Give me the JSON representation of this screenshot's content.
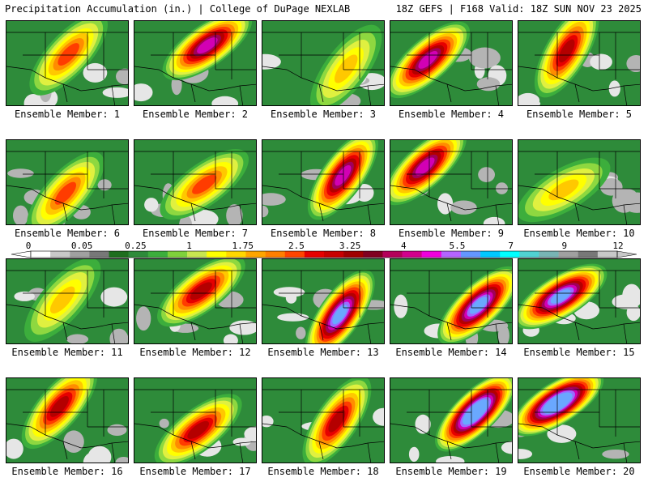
{
  "header": {
    "title": "Precipitation Accumulation (in.) | College of DuPage NEXLAB",
    "run_info": "18Z GEFS | F168 Valid: 18Z SUN NOV 23 2025"
  },
  "members": [
    {
      "label": "Ensemble Member: 1",
      "intensity": 2
    },
    {
      "label": "Ensemble Member: 2",
      "intensity": 4
    },
    {
      "label": "Ensemble Member: 3",
      "intensity": 1
    },
    {
      "label": "Ensemble Member: 4",
      "intensity": 4
    },
    {
      "label": "Ensemble Member: 5",
      "intensity": 3
    },
    {
      "label": "Ensemble Member: 6",
      "intensity": 2
    },
    {
      "label": "Ensemble Member: 7",
      "intensity": 2
    },
    {
      "label": "Ensemble Member: 8",
      "intensity": 4
    },
    {
      "label": "Ensemble Member: 9",
      "intensity": 4
    },
    {
      "label": "Ensemble Member: 10",
      "intensity": 1
    },
    {
      "label": "Ensemble Member: 11",
      "intensity": 1
    },
    {
      "label": "Ensemble Member: 12",
      "intensity": 3
    },
    {
      "label": "Ensemble Member: 13",
      "intensity": 5
    },
    {
      "label": "Ensemble Member: 14",
      "intensity": 5
    },
    {
      "label": "Ensemble Member: 15",
      "intensity": 5
    },
    {
      "label": "Ensemble Member: 16",
      "intensity": 3
    },
    {
      "label": "Ensemble Member: 17",
      "intensity": 3
    },
    {
      "label": "Ensemble Member: 18",
      "intensity": 3
    },
    {
      "label": "Ensemble Member: 19",
      "intensity": 6
    },
    {
      "label": "Ensemble Member: 20",
      "intensity": 6
    }
  ],
  "colorbar": {
    "tick_labels": [
      "0",
      "0.05",
      "0.25",
      "1",
      "1.75",
      "2.5",
      "3.25",
      "4",
      "5.5",
      "7",
      "9",
      "12"
    ],
    "colors": [
      "#ffffff",
      "#c8c8c8",
      "#a0a0a0",
      "#787878",
      "#1e6e1e",
      "#2e8b3a",
      "#3cae3c",
      "#7fd13b",
      "#c8e650",
      "#ffff00",
      "#ffd700",
      "#ffa500",
      "#ff7f00",
      "#ff4500",
      "#e60000",
      "#c80000",
      "#a00000",
      "#800020",
      "#b4005a",
      "#d2008c",
      "#f000dc",
      "#b464ff",
      "#6496ff",
      "#00c8ff",
      "#00ffff",
      "#50d2d2",
      "#78b4b4",
      "#a0a0a0",
      "#787878",
      "#c8c8c8"
    ]
  }
}
